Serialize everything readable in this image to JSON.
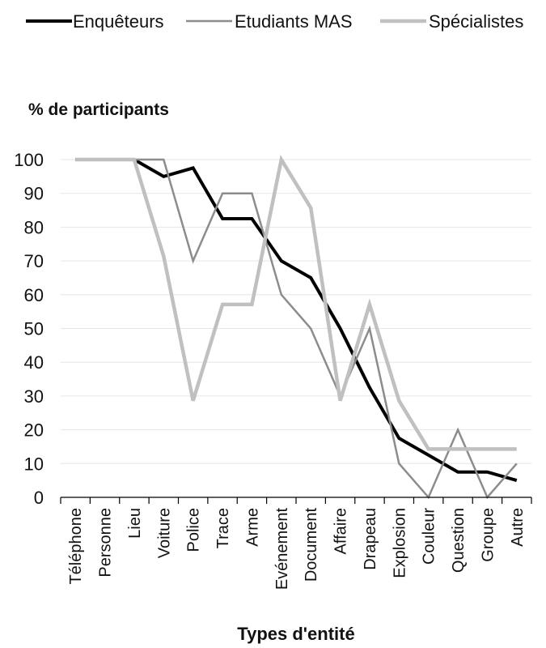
{
  "chart_data": {
    "type": "line",
    "title": "",
    "ylabel": "% de participants",
    "xlabel": "Types d'entité",
    "ylim": [
      0,
      100
    ],
    "yticks": [
      0,
      10,
      20,
      30,
      40,
      50,
      60,
      70,
      80,
      90,
      100
    ],
    "grid": true,
    "legend_position": "top",
    "categories": [
      "Téléphone",
      "Personne",
      "Lieu",
      "Voiture",
      "Police",
      "Trace",
      "Arme",
      "Evénement",
      "Document",
      "Affaire",
      "Drapeau",
      "Explosion",
      "Couleur",
      "Question",
      "Groupe",
      "Autre"
    ],
    "series": [
      {
        "name": "Enquêteurs",
        "color": "#000000",
        "width": 4,
        "values": [
          100,
          100,
          100,
          95,
          97.5,
          82.5,
          82.5,
          70,
          65,
          50,
          32.5,
          17.5,
          12.5,
          7.5,
          7.5,
          5
        ]
      },
      {
        "name": "Etudiants MAS",
        "color": "#8c8c8c",
        "width": 2.5,
        "values": [
          100,
          100,
          100,
          100,
          70,
          90,
          90,
          60,
          50,
          30,
          50,
          10,
          0,
          20,
          0,
          10
        ]
      },
      {
        "name": "Spécialistes",
        "color": "#c0c0c0",
        "width": 4.5,
        "values": [
          100,
          100,
          100,
          71.4,
          28.6,
          57.1,
          57.1,
          100,
          85.7,
          28.6,
          57.1,
          28.6,
          14.3,
          14.3,
          14.3,
          14.3
        ]
      }
    ]
  }
}
